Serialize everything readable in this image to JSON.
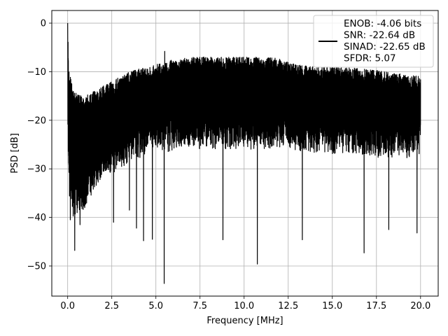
{
  "chart_data": {
    "type": "line",
    "xlabel": "Frequency [MHz]",
    "ylabel": "PSD [dB]",
    "xlim": [
      -0.9,
      21.0
    ],
    "ylim": [
      -56.2,
      2.6
    ],
    "xticks": [
      0.0,
      2.5,
      5.0,
      7.5,
      10.0,
      12.5,
      15.0,
      17.5,
      20.0
    ],
    "xtick_labels": [
      "0.0",
      "2.5",
      "5.0",
      "7.5",
      "10.0",
      "12.5",
      "15.0",
      "17.5",
      "20.0"
    ],
    "yticks": [
      0,
      -10,
      -20,
      -30,
      -40,
      -50
    ],
    "ytick_labels": [
      "0",
      "−10",
      "−20",
      "−30",
      "−40",
      "−50"
    ],
    "grid": true,
    "legend": {
      "placement": "top-right",
      "entries": [
        "ENOB: -4.06 bits",
        "SNR: -22.64 dB",
        "SINAD: -22.65 dB",
        "SFDR: 5.07"
      ]
    },
    "series": [
      {
        "color": "#000000",
        "x_range": [
          0.0,
          20.0
        ],
        "envelope": {
          "x": [
            0.0,
            0.05,
            0.1,
            0.2,
            0.3,
            0.5,
            0.8,
            1.0,
            1.5,
            2.0,
            2.5,
            3.0,
            3.5,
            4.0,
            4.5,
            5.0,
            5.5,
            6.0,
            6.5,
            7.0,
            7.5,
            8.0,
            9.0,
            10.0,
            11.0,
            12.0,
            12.5,
            13.0,
            14.0,
            15.0,
            16.0,
            17.0,
            18.0,
            19.0,
            20.0
          ],
          "upper": [
            0.0,
            -7.0,
            -10.0,
            -12.0,
            -13.5,
            -14.5,
            -15.0,
            -15.0,
            -14.0,
            -13.0,
            -12.0,
            -11.0,
            -10.0,
            -9.5,
            -9.0,
            -8.5,
            -8.0,
            -7.5,
            -7.2,
            -7.0,
            -7.0,
            -7.0,
            -7.0,
            -7.0,
            -7.0,
            -7.2,
            -8.0,
            -8.5,
            -9.0,
            -9.0,
            -9.2,
            -9.5,
            -10.0,
            -10.5,
            -11.0
          ],
          "lower": [
            -20.0,
            -30.0,
            -35.0,
            -37.0,
            -38.0,
            -38.0,
            -37.0,
            -36.0,
            -33.0,
            -30.0,
            -29.0,
            -28.0,
            -27.0,
            -26.0,
            -25.0,
            -25.0,
            -25.0,
            -24.5,
            -24.0,
            -24.0,
            -24.0,
            -24.0,
            -24.0,
            -24.0,
            -24.0,
            -24.0,
            -24.0,
            -24.5,
            -25.0,
            -25.0,
            -25.0,
            -25.5,
            -26.0,
            -26.0,
            -25.0
          ]
        },
        "notable_points": [
          {
            "x": 0.0,
            "y": 0.0
          },
          {
            "x": 0.15,
            "y": -40.5
          },
          {
            "x": 0.4,
            "y": -46.8
          },
          {
            "x": 0.7,
            "y": -41.5
          },
          {
            "x": 2.6,
            "y": -41.0
          },
          {
            "x": 3.5,
            "y": -38.5
          },
          {
            "x": 3.9,
            "y": -42.2
          },
          {
            "x": 4.3,
            "y": -44.8
          },
          {
            "x": 4.8,
            "y": -44.5
          },
          {
            "x": 5.47,
            "y": -53.6
          },
          {
            "x": 5.5,
            "y": -5.8
          },
          {
            "x": 8.8,
            "y": -44.6
          },
          {
            "x": 10.75,
            "y": -49.6
          },
          {
            "x": 13.3,
            "y": -44.6
          },
          {
            "x": 16.8,
            "y": -47.3
          },
          {
            "x": 18.2,
            "y": -42.5
          },
          {
            "x": 19.8,
            "y": -43.2
          }
        ]
      }
    ]
  }
}
